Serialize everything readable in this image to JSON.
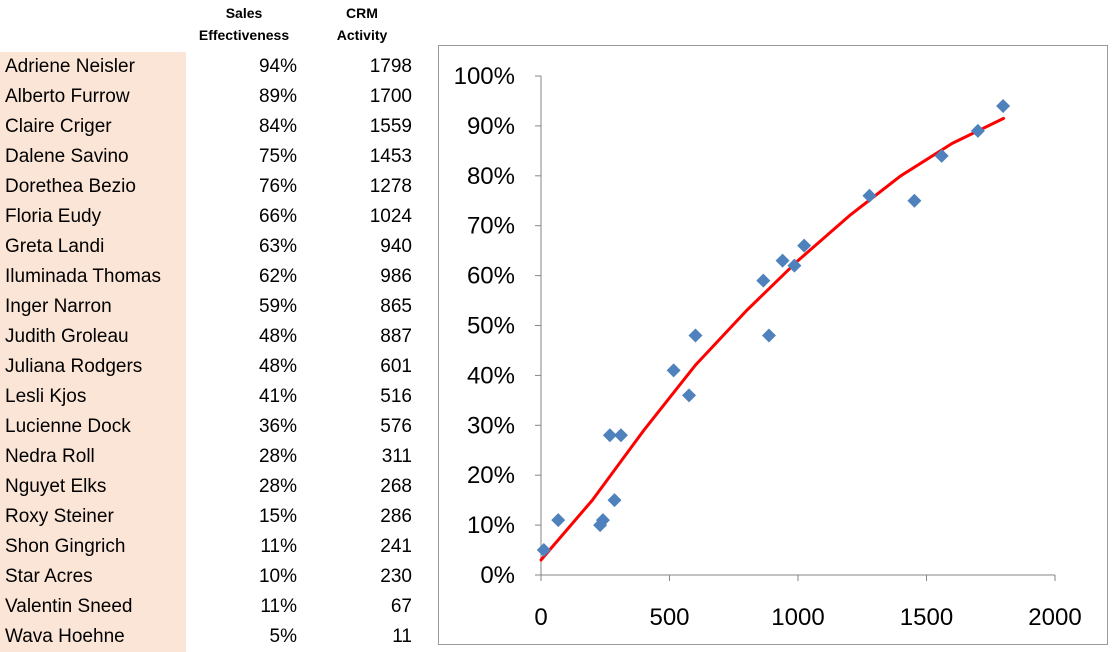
{
  "table": {
    "header_sales": "Sales\nEffectiveness",
    "header_crm": "CRM\nActivity",
    "rows": [
      {
        "name": "Adriene Neisler",
        "effectiveness": "94%",
        "crm": "1798"
      },
      {
        "name": "Alberto Furrow",
        "effectiveness": "89%",
        "crm": "1700"
      },
      {
        "name": "Claire Criger",
        "effectiveness": "84%",
        "crm": "1559"
      },
      {
        "name": "Dalene Savino",
        "effectiveness": "75%",
        "crm": "1453"
      },
      {
        "name": "Dorethea Bezio",
        "effectiveness": "76%",
        "crm": "1278"
      },
      {
        "name": "Floria Eudy",
        "effectiveness": "66%",
        "crm": "1024"
      },
      {
        "name": "Greta Landi",
        "effectiveness": "63%",
        "crm": "940"
      },
      {
        "name": "Iluminada Thomas",
        "effectiveness": "62%",
        "crm": "986"
      },
      {
        "name": "Inger Narron",
        "effectiveness": "59%",
        "crm": "865"
      },
      {
        "name": "Judith Groleau",
        "effectiveness": "48%",
        "crm": "887"
      },
      {
        "name": "Juliana Rodgers",
        "effectiveness": "48%",
        "crm": "601"
      },
      {
        "name": "Lesli Kjos",
        "effectiveness": "41%",
        "crm": "516"
      },
      {
        "name": "Lucienne Dock",
        "effectiveness": "36%",
        "crm": "576"
      },
      {
        "name": "Nedra Roll",
        "effectiveness": "28%",
        "crm": "311"
      },
      {
        "name": "Nguyet Elks",
        "effectiveness": "28%",
        "crm": "268"
      },
      {
        "name": "Roxy Steiner",
        "effectiveness": "15%",
        "crm": "286"
      },
      {
        "name": "Shon Gingrich",
        "effectiveness": "11%",
        "crm": "241"
      },
      {
        "name": "Star Acres",
        "effectiveness": "10%",
        "crm": "230"
      },
      {
        "name": "Valentin Sneed",
        "effectiveness": "11%",
        "crm": "67"
      },
      {
        "name": "Wava Hoehne",
        "effectiveness": "5%",
        "crm": "11"
      }
    ]
  },
  "chart_data": {
    "type": "scatter",
    "title": "",
    "xlabel": "",
    "ylabel": "",
    "xlim": [
      0,
      2000
    ],
    "ylim": [
      0,
      1
    ],
    "x_ticks": [
      0,
      500,
      1000,
      1500,
      2000
    ],
    "x_tick_labels": [
      "0",
      "500",
      "1000",
      "1500",
      "2000"
    ],
    "y_ticks": [
      0,
      0.1,
      0.2,
      0.3,
      0.4,
      0.5,
      0.6,
      0.7,
      0.8,
      0.9,
      1.0
    ],
    "y_tick_labels": [
      "0%",
      "10%",
      "20%",
      "30%",
      "40%",
      "50%",
      "60%",
      "70%",
      "80%",
      "90%",
      "100%"
    ],
    "grid": false,
    "legend": "none",
    "series": [
      {
        "marker_color": "#4f81bd",
        "marker": "diamond",
        "x": [
          1798,
          1700,
          1559,
          1453,
          1278,
          1024,
          940,
          986,
          865,
          887,
          601,
          516,
          576,
          311,
          268,
          286,
          241,
          230,
          67,
          11
        ],
        "y": [
          0.94,
          0.89,
          0.84,
          0.75,
          0.76,
          0.66,
          0.63,
          0.62,
          0.59,
          0.48,
          0.48,
          0.41,
          0.36,
          0.28,
          0.28,
          0.15,
          0.11,
          0.1,
          0.11,
          0.05
        ]
      }
    ],
    "trendline": {
      "color": "#ff0000",
      "x_range": [
        0,
        1800
      ],
      "points": [
        [
          0,
          0.03
        ],
        [
          200,
          0.15
        ],
        [
          400,
          0.29
        ],
        [
          600,
          0.42
        ],
        [
          800,
          0.53
        ],
        [
          1000,
          0.63
        ],
        [
          1200,
          0.72
        ],
        [
          1400,
          0.8
        ],
        [
          1600,
          0.865
        ],
        [
          1800,
          0.915
        ]
      ]
    }
  }
}
